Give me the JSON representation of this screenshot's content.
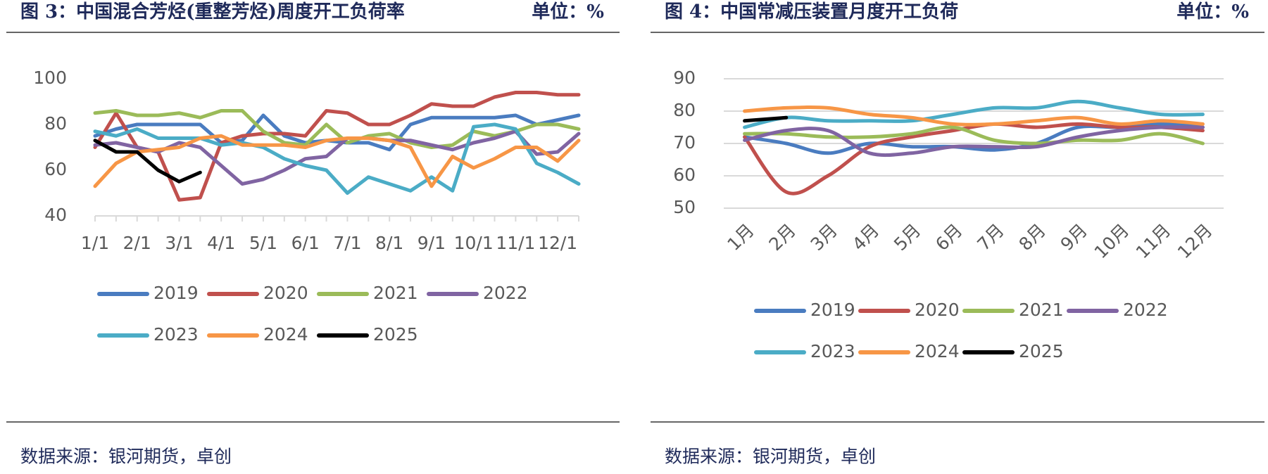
{
  "chart_data": [
    {
      "type": "line",
      "title": "图 3：中国混合芳烃(重整芳烃)周度开工负荷率",
      "unit": "单位：%",
      "source": "数据来源：银河期货，卓创",
      "categories": [
        "1/1",
        null,
        "2/1",
        null,
        "3/1",
        null,
        "4/1",
        null,
        "5/1",
        null,
        "6/1",
        null,
        "7/1",
        null,
        "8/1",
        null,
        "9/1",
        null,
        "10/1",
        null,
        "11/1",
        null,
        "12/1",
        null
      ],
      "ylim": [
        40,
        100
      ],
      "yticks": [
        40,
        60,
        80,
        100
      ],
      "grid": false,
      "smooth": false,
      "series": [
        {
          "name": "2019",
          "color": "#4a7cc0",
          "values": [
            75,
            78,
            80,
            80,
            80,
            80,
            72,
            73,
            84,
            75,
            72,
            73,
            72,
            72,
            69,
            80,
            83,
            83,
            83,
            83,
            84,
            80,
            82,
            84
          ]
        },
        {
          "name": "2020",
          "color": "#c0504d",
          "values": [
            70,
            85,
            70,
            68,
            47,
            48,
            72,
            75,
            76,
            76,
            75,
            86,
            85,
            80,
            80,
            84,
            89,
            88,
            88,
            92,
            94,
            94,
            93,
            93
          ]
        },
        {
          "name": "2021",
          "color": "#9bbb59",
          "values": [
            85,
            86,
            84,
            84,
            85,
            83,
            86,
            86,
            77,
            72,
            71,
            80,
            72,
            75,
            76,
            72,
            70,
            71,
            77,
            75,
            77,
            80,
            80,
            78
          ]
        },
        {
          "name": "2022",
          "color": "#8064a2",
          "values": [
            71,
            72,
            70,
            68,
            72,
            70,
            62,
            54,
            56,
            60,
            65,
            66,
            74,
            74,
            73,
            73,
            71,
            69,
            72,
            74,
            77,
            67,
            68,
            76
          ]
        },
        {
          "name": "2023",
          "color": "#4bacc6",
          "values": [
            77,
            75,
            78,
            74,
            74,
            74,
            71,
            72,
            70,
            65,
            62,
            60,
            50,
            57,
            54,
            51,
            57,
            51,
            79,
            80,
            78,
            63,
            59,
            54
          ]
        },
        {
          "name": "2024",
          "color": "#f79646",
          "values": [
            53,
            63,
            68,
            69,
            70,
            74,
            75,
            71,
            71,
            71,
            70,
            73,
            74,
            74,
            73,
            70,
            53,
            66,
            61,
            65,
            70,
            70,
            64,
            73
          ]
        },
        {
          "name": "2025",
          "color": "#000000",
          "values": [
            73,
            68,
            68,
            60,
            55,
            59,
            null,
            null,
            null,
            null,
            null,
            null,
            null,
            null,
            null,
            null,
            null,
            null,
            null,
            null,
            null,
            null,
            null,
            null
          ]
        }
      ]
    },
    {
      "type": "line",
      "title": "图 4：中国常减压装置月度开工负荷",
      "unit": "单位：%",
      "source": "数据来源：银河期货，卓创",
      "categories": [
        "1月",
        "2月",
        "3月",
        "4月",
        "5月",
        "6月",
        "7月",
        "8月",
        "9月",
        "10月",
        "11月",
        "12月"
      ],
      "ylim": [
        50,
        90
      ],
      "yticks": [
        50,
        60,
        70,
        80,
        90
      ],
      "grid": true,
      "smooth": true,
      "series": [
        {
          "name": "2019",
          "color": "#4a7cc0",
          "values": [
            72,
            70,
            67,
            70,
            69,
            69,
            68,
            70,
            75,
            75,
            76,
            75
          ]
        },
        {
          "name": "2020",
          "color": "#c0504d",
          "values": [
            72,
            55,
            60,
            69,
            72,
            74,
            76,
            75,
            76,
            75,
            75,
            74
          ]
        },
        {
          "name": "2021",
          "color": "#9bbb59",
          "values": [
            73,
            73,
            72,
            72,
            73,
            75,
            71,
            70,
            71,
            71,
            73,
            70
          ]
        },
        {
          "name": "2022",
          "color": "#8064a2",
          "values": [
            71,
            74,
            74,
            67,
            67,
            69,
            69,
            69,
            72,
            74,
            75,
            75
          ]
        },
        {
          "name": "2023",
          "color": "#4bacc6",
          "values": [
            75,
            78,
            77,
            77,
            77,
            79,
            81,
            81,
            83,
            81,
            79,
            79
          ]
        },
        {
          "name": "2024",
          "color": "#f79646",
          "values": [
            80,
            81,
            81,
            79,
            78,
            76,
            76,
            77,
            78,
            76,
            77,
            76
          ]
        },
        {
          "name": "2025",
          "color": "#000000",
          "values": [
            77,
            78,
            null,
            null,
            null,
            null,
            null,
            null,
            null,
            null,
            null,
            null
          ]
        }
      ]
    }
  ]
}
